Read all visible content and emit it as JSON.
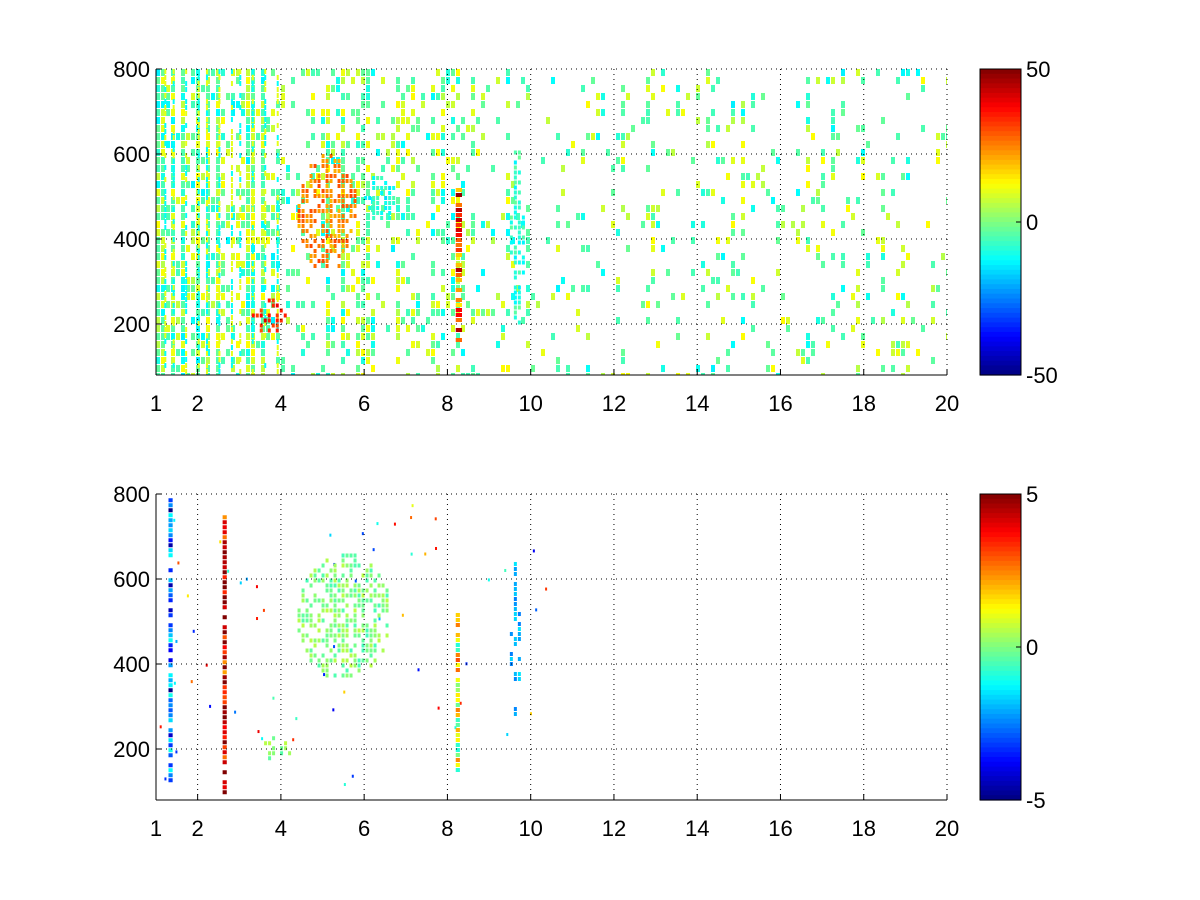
{
  "chart_data": [
    {
      "type": "heatmap",
      "title": "",
      "xlabel": "",
      "ylabel": "",
      "xlim": [
        1,
        20
      ],
      "ylim": [
        80,
        800
      ],
      "x_ticks": [
        "1",
        "2",
        "4",
        "6",
        "8",
        "10",
        "12",
        "14",
        "16",
        "18",
        "20"
      ],
      "x_tick_values": [
        1,
        2,
        4,
        6,
        8,
        10,
        12,
        14,
        16,
        18,
        20
      ],
      "y_ticks": [
        "200",
        "400",
        "600",
        "800"
      ],
      "y_tick_values": [
        200,
        400,
        600,
        800
      ],
      "grid": true,
      "colormap": "jet",
      "colorbar": {
        "min": -50,
        "max": 50,
        "ticks": [
          "50",
          "0",
          "-50"
        ],
        "tick_values": [
          50,
          0,
          -50
        ]
      },
      "features": [
        {
          "x": [
            4.4,
            5.8
          ],
          "y": [
            330,
            600
          ],
          "value": 25
        },
        {
          "x": [
            3.3,
            4.1
          ],
          "y": [
            180,
            260
          ],
          "value": 35
        },
        {
          "x": [
            6.0,
            6.7
          ],
          "y": [
            440,
            560
          ],
          "value": -10
        },
        {
          "x": [
            8.2,
            8.35
          ],
          "y": [
            150,
            520
          ],
          "value": 28
        },
        {
          "x": [
            9.5,
            9.8
          ],
          "y": [
            200,
            620
          ],
          "value": -8
        }
      ]
    },
    {
      "type": "heatmap",
      "title": "",
      "xlabel": "",
      "ylabel": "",
      "xlim": [
        1,
        20
      ],
      "ylim": [
        80,
        800
      ],
      "x_ticks": [
        "1",
        "2",
        "4",
        "6",
        "8",
        "10",
        "12",
        "14",
        "16",
        "18",
        "20"
      ],
      "x_tick_values": [
        1,
        2,
        4,
        6,
        8,
        10,
        12,
        14,
        16,
        18,
        20
      ],
      "y_ticks": [
        "200",
        "400",
        "600",
        "800"
      ],
      "y_tick_values": [
        200,
        400,
        600,
        800
      ],
      "grid": true,
      "colormap": "jet",
      "colorbar": {
        "min": -5,
        "max": 5,
        "ticks": [
          "5",
          "0",
          "-5"
        ],
        "tick_values": [
          5,
          0,
          -5
        ]
      },
      "features": [
        {
          "x": [
            4.4,
            6.6
          ],
          "y": [
            370,
            660
          ],
          "value": 0
        },
        {
          "x": [
            3.5,
            4.2
          ],
          "y": [
            180,
            230
          ],
          "value": 0
        },
        {
          "x": [
            8.2,
            8.3
          ],
          "y": [
            150,
            520
          ],
          "value": 1
        },
        {
          "x": [
            1.3,
            1.4
          ],
          "y": [
            130,
            790
          ],
          "value": -3
        },
        {
          "x": [
            2.6,
            2.7
          ],
          "y": [
            100,
            750
          ],
          "value": 4
        },
        {
          "x": [
            9.5,
            9.7
          ],
          "y": [
            240,
            640
          ],
          "value": -2
        }
      ]
    }
  ]
}
